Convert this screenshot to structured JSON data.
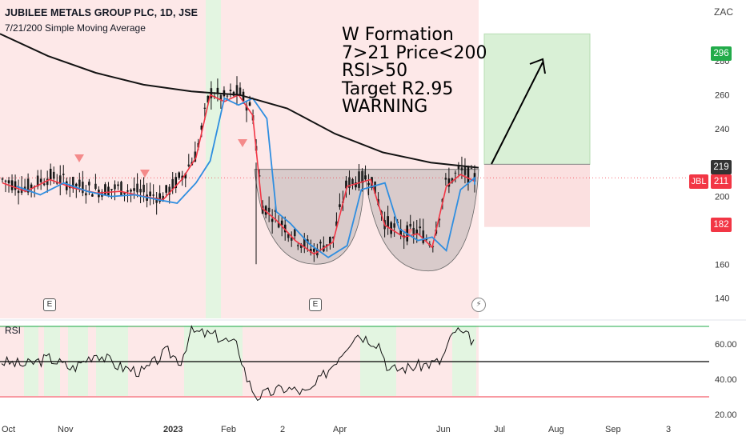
{
  "header": {
    "title": "JUBILEE METALS GROUP PLC, 1D, JSE",
    "indicator": "7/21/200 Simple Moving Average",
    "currency": "ZAC"
  },
  "annotation": {
    "lines": [
      "W Formation",
      "7>21 Price<200",
      "RSI>50",
      "Target R2.95",
      "WARNING"
    ]
  },
  "symbol_tag": "JBL",
  "price_badges": {
    "target": "296",
    "ma200": "219",
    "last": "211",
    "stop": "182"
  },
  "events": {
    "earnings_label": "E",
    "dividend_icon": "flash-icon"
  },
  "rsi_label": "RSI",
  "colors": {
    "bg_red": "#fde8e8",
    "bg_green": "#e3f5e1",
    "sma7": "#f23645",
    "sma21": "#2f8ee0",
    "sma200": "#131313",
    "up": "#1a1a1a",
    "badge_green": "#22ab4a",
    "badge_red": "#f23645",
    "badge_dark": "#333333"
  },
  "chart_data": {
    "type": "candlestick",
    "title": "JUBILEE METALS GROUP PLC, 1D, JSE",
    "price_axis": {
      "ticks": [
        140,
        160,
        180,
        200,
        220,
        240,
        260,
        280,
        300
      ],
      "labels": [
        "140",
        "160",
        "",
        "200",
        "",
        "240",
        "260",
        "280",
        ""
      ],
      "range": [
        128,
        316
      ]
    },
    "rsi_axis": {
      "ticks": [
        20,
        40,
        60
      ],
      "labels": [
        "20.00",
        "40.00",
        "60.00"
      ],
      "levels": [
        30,
        50,
        70
      ]
    },
    "time_axis": [
      "Oct",
      "Nov",
      "2023",
      "Feb",
      "2",
      "Apr",
      "Jun",
      "Jul",
      "Aug",
      "Sep",
      "3"
    ],
    "price_path": [
      [
        0,
        210
      ],
      [
        0.05,
        205
      ],
      [
        0.1,
        212
      ],
      [
        0.15,
        207
      ],
      [
        0.2,
        204
      ],
      [
        0.25,
        205
      ],
      [
        0.3,
        202
      ],
      [
        0.34,
        200
      ],
      [
        0.38,
        212
      ],
      [
        0.41,
        225
      ],
      [
        0.44,
        262
      ],
      [
        0.47,
        258
      ],
      [
        0.5,
        262
      ],
      [
        0.53,
        250
      ],
      [
        0.55,
        195
      ],
      [
        0.58,
        188
      ],
      [
        0.62,
        176
      ],
      [
        0.66,
        168
      ],
      [
        0.7,
        175
      ],
      [
        0.73,
        208
      ],
      [
        0.78,
        212
      ],
      [
        0.81,
        185
      ],
      [
        0.85,
        178
      ],
      [
        0.88,
        180
      ],
      [
        0.91,
        172
      ],
      [
        0.94,
        208
      ],
      [
        0.97,
        215
      ],
      [
        1,
        211
      ]
    ],
    "sma200_path": [
      [
        0,
        296
      ],
      [
        0.1,
        283
      ],
      [
        0.2,
        273
      ],
      [
        0.3,
        266
      ],
      [
        0.4,
        262
      ],
      [
        0.5,
        260
      ],
      [
        0.6,
        252
      ],
      [
        0.7,
        237
      ],
      [
        0.8,
        226
      ],
      [
        0.9,
        220
      ],
      [
        1,
        217
      ]
    ],
    "rsi_path": [
      [
        0,
        50
      ],
      [
        0.05,
        48
      ],
      [
        0.1,
        52
      ],
      [
        0.15,
        46
      ],
      [
        0.2,
        55
      ],
      [
        0.25,
        47
      ],
      [
        0.3,
        44
      ],
      [
        0.35,
        56
      ],
      [
        0.38,
        50
      ],
      [
        0.4,
        67
      ],
      [
        0.45,
        65
      ],
      [
        0.5,
        59
      ],
      [
        0.52,
        40
      ],
      [
        0.54,
        30
      ],
      [
        0.6,
        35
      ],
      [
        0.65,
        32
      ],
      [
        0.7,
        48
      ],
      [
        0.75,
        66
      ],
      [
        0.8,
        60
      ],
      [
        0.82,
        45
      ],
      [
        0.87,
        47
      ],
      [
        0.93,
        50
      ],
      [
        0.96,
        68
      ],
      [
        1,
        62
      ]
    ],
    "levels": {
      "target": 296,
      "ma200": 219,
      "last": 211,
      "stop": 182
    }
  }
}
